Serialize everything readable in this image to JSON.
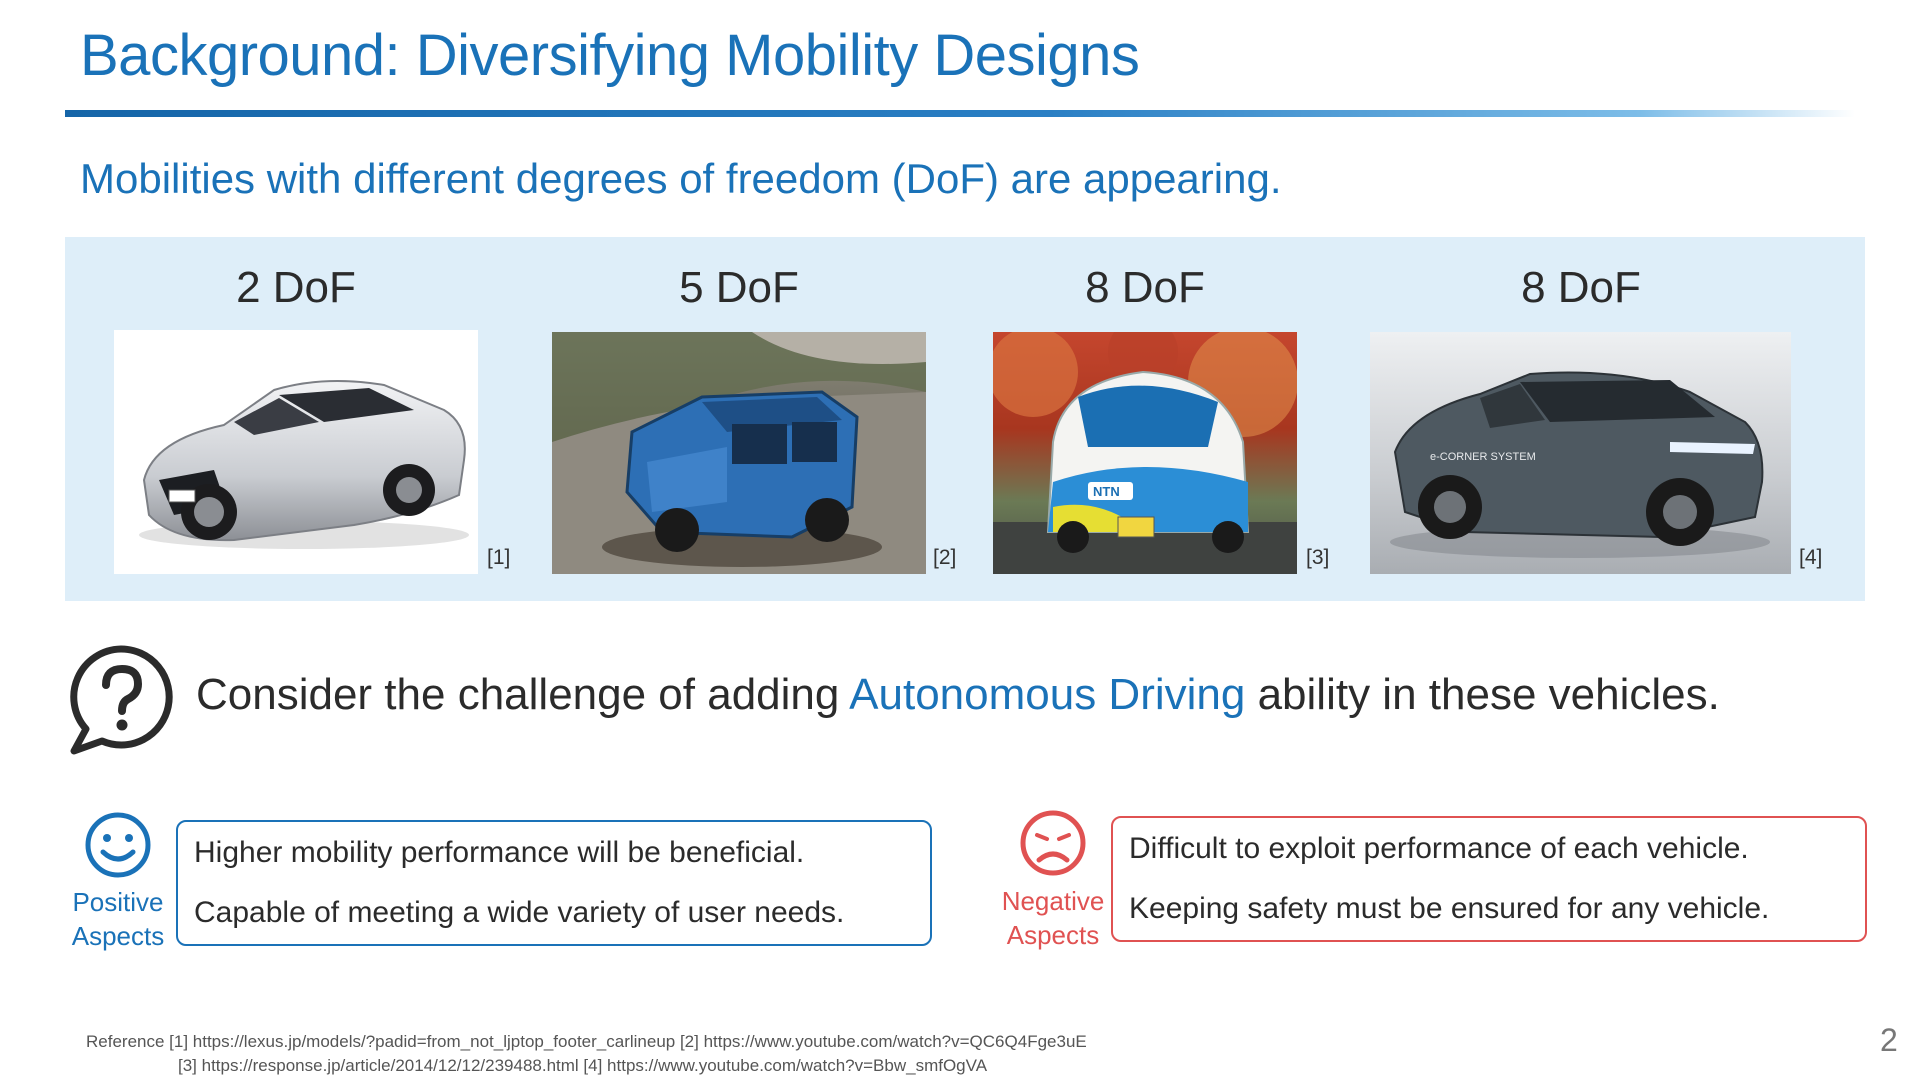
{
  "slide": {
    "title": "Background: Diversifying Mobility Designs",
    "subtitle": "Mobilities with different degrees of freedom (DoF) are appearing.",
    "vehicles": [
      {
        "dof": "2 DoF",
        "ref": "[1]",
        "photo": "silver-sports-coupe"
      },
      {
        "dof": "5 DoF",
        "ref": "[2]",
        "photo": "camouflaged-suv-offroad"
      },
      {
        "dof": "8 DoF",
        "ref": "[3]",
        "photo": "ntn-compact-ev"
      },
      {
        "dof": "8 DoF",
        "ref": "[4]",
        "photo": "e-corner-system-crossover"
      }
    ],
    "question": {
      "prefix": "Consider the challenge of adding ",
      "highlight": "Autonomous Driving",
      "suffix": " ability in these vehicles."
    },
    "positive": {
      "label_line1": "Positive",
      "label_line2": "Aspects",
      "lines": [
        "Higher mobility performance will be beneficial.",
        "Capable of meeting a wide variety of user needs."
      ],
      "color": "#1a72b8"
    },
    "negative": {
      "label_line1": "Negative",
      "label_line2": "Aspects",
      "lines": [
        "Difficult to exploit performance of each vehicle.",
        "Keeping safety must be ensured for any vehicle."
      ],
      "color": "#e05252"
    },
    "references": {
      "line1": "Reference  [1] https://lexus.jp/models/?padid=from_not_ljptop_footer_carlineup [2] https://www.youtube.com/watch?v=QC6Q4Fge3uE",
      "line2": "[3] https://response.jp/article/2014/12/12/239488.html [4]  https://www.youtube.com/watch?v=Bbw_smfOgVA"
    },
    "page_number": "2"
  }
}
